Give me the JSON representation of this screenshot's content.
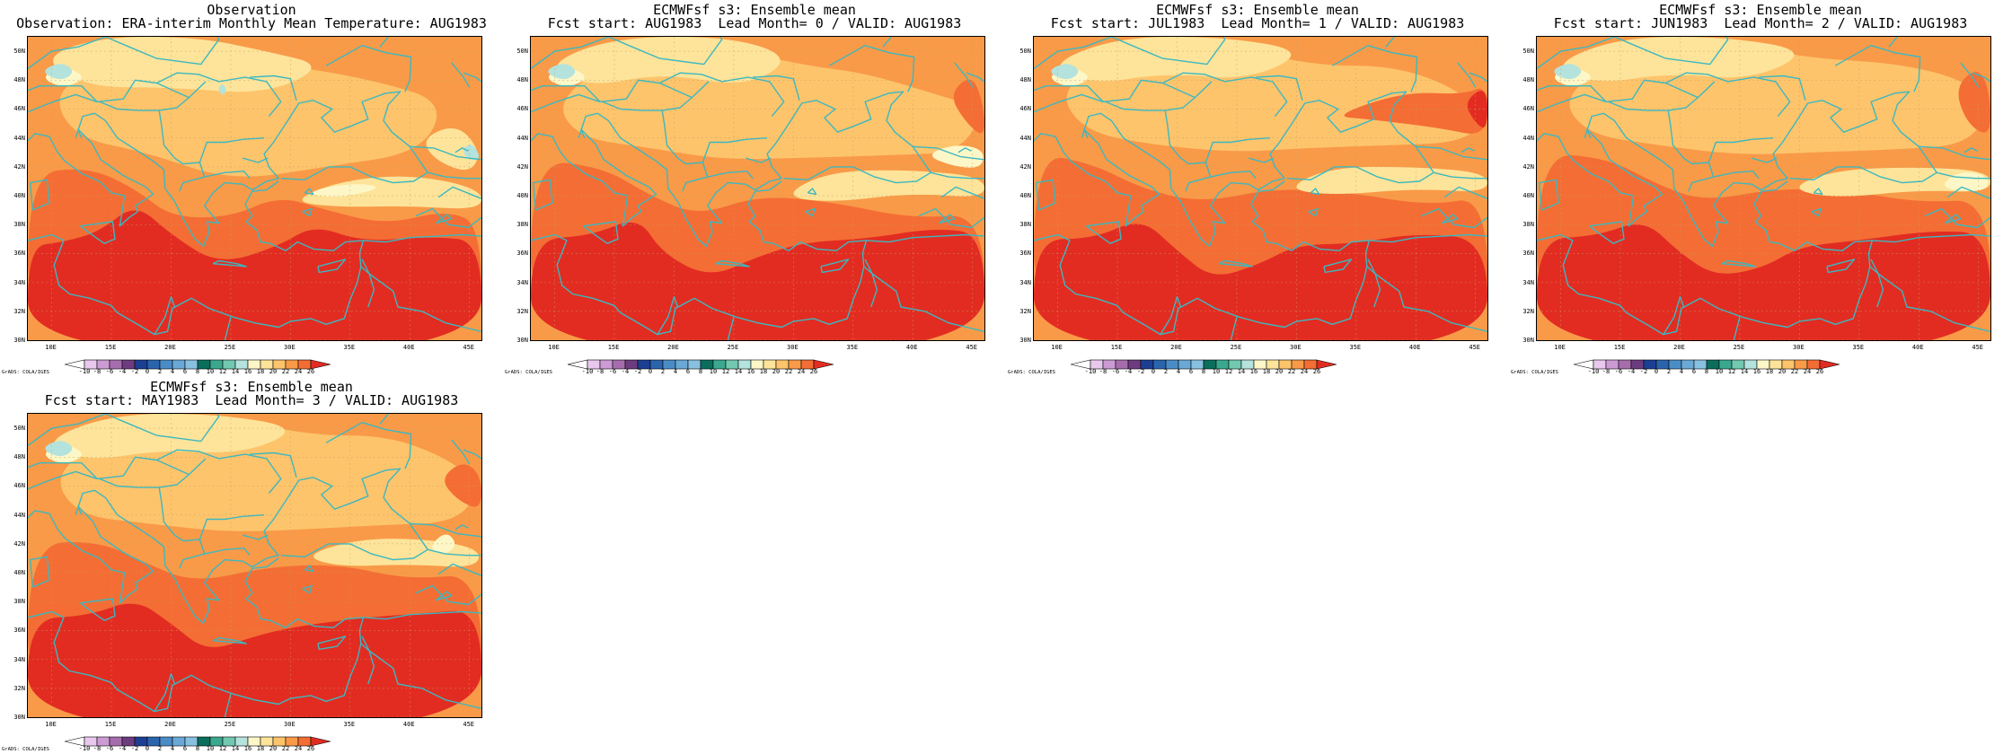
{
  "map_style": {
    "coast_color": "#3cb8c0",
    "grid_color": "#c8a060",
    "colorbar": [
      {
        "label": "-10",
        "color": "#ffffff"
      },
      {
        "label": "-8",
        "color": "#e9c8ee"
      },
      {
        "label": "-6",
        "color": "#cc9bd4"
      },
      {
        "label": "-4",
        "color": "#a66dad"
      },
      {
        "label": "-2",
        "color": "#6d3c7e"
      },
      {
        "label": "0",
        "color": "#1c3f94"
      },
      {
        "label": "2",
        "color": "#2a64ad"
      },
      {
        "label": "4",
        "color": "#4a8cc6"
      },
      {
        "label": "6",
        "color": "#6aa8d6"
      },
      {
        "label": "8",
        "color": "#88c0e0"
      },
      {
        "label": "10",
        "color": "#0b6e5c"
      },
      {
        "label": "12",
        "color": "#3aa88e"
      },
      {
        "label": "14",
        "color": "#72c8b0"
      },
      {
        "label": "16",
        "color": "#b4e2dc"
      },
      {
        "label": "18",
        "color": "#fdf7c8"
      },
      {
        "label": "20",
        "color": "#fde49a"
      },
      {
        "label": "22",
        "color": "#fdc46c"
      },
      {
        "label": "24",
        "color": "#f99a48"
      },
      {
        "label": "26",
        "color": "#f46d34"
      },
      {
        "label": "",
        "color": "#e22c22"
      }
    ]
  },
  "lat_labels": [
    "50N",
    "48N",
    "46N",
    "44N",
    "42N",
    "40N",
    "38N",
    "36N",
    "34N",
    "32N",
    "30N"
  ],
  "lon_labels": [
    "10E",
    "15E",
    "20E",
    "25E",
    "30E",
    "35E",
    "40E",
    "45E"
  ],
  "credit": "GrADS: COLA/IGES",
  "panels": [
    {
      "title1": "Observation",
      "title2": "Observation: ERA-interim Monthly Mean Temperature: AUG1983",
      "variant": 0
    },
    {
      "title1": "ECMWFsf s3: Ensemble mean",
      "title2": "Fcst start: AUG1983  Lead Month= 0 / VALID: AUG1983",
      "variant": 1
    },
    {
      "title1": "ECMWFsf s3: Ensemble mean",
      "title2": "Fcst start: JUL1983  Lead Month= 1 / VALID: AUG1983",
      "variant": 2
    },
    {
      "title1": "ECMWFsf s3: Ensemble mean",
      "title2": "Fcst start: JUN1983  Lead Month= 2 / VALID: AUG1983",
      "variant": 3
    },
    {
      "title1": "ECMWFsf s3: Ensemble mean",
      "title2": "Fcst start: MAY1983  Lead Month= 3 / VALID: AUG1983",
      "variant": 4
    }
  ]
}
